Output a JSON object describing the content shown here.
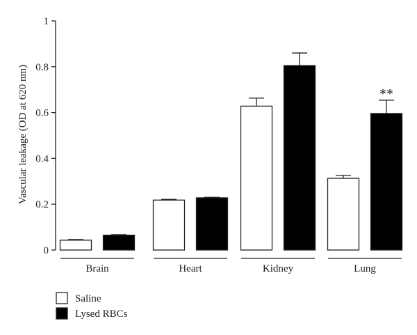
{
  "chart_data": {
    "type": "bar",
    "ylabel": "Vascular leakage (OD at 620 nm)",
    "ylim": [
      0,
      1
    ],
    "yticks": [
      0,
      0.2,
      0.4,
      0.6,
      0.8,
      1
    ],
    "ytick_labels": [
      "0",
      "0.2",
      "0.4",
      "0.6",
      "0.8",
      "1"
    ],
    "categories": [
      "Brain",
      "Heart",
      "Kidney",
      "Lung"
    ],
    "series": [
      {
        "name": "Saline",
        "color": "#ffffff",
        "values": [
          0.043,
          0.218,
          0.628,
          0.313
        ],
        "errors": [
          0.003,
          0.003,
          0.035,
          0.013
        ]
      },
      {
        "name": "Lysed RBCs",
        "color": "#000000",
        "values": [
          0.065,
          0.228,
          0.805,
          0.596
        ],
        "errors": [
          0.002,
          0.002,
          0.055,
          0.058
        ]
      }
    ],
    "annotations": [
      {
        "category": "Lung",
        "series": "Lysed RBCs",
        "text": "**"
      }
    ],
    "legend_position": "bottom-left",
    "grid": false
  }
}
